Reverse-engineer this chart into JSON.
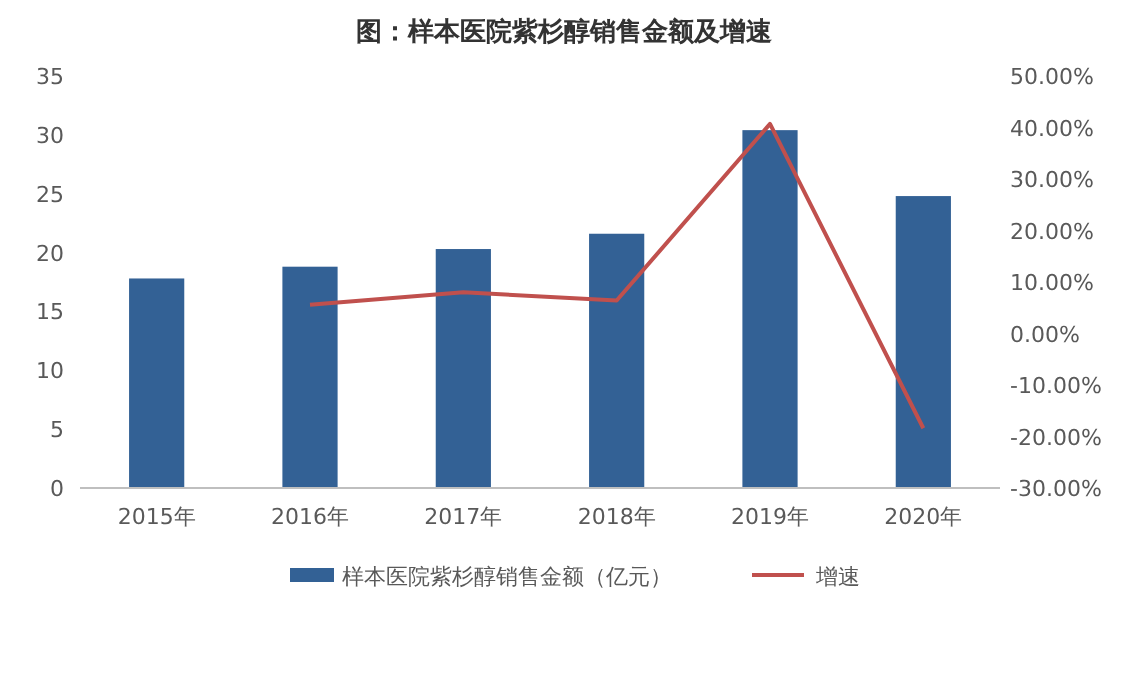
{
  "chart_data": {
    "type": "bar",
    "title": "图：样本医院紫杉醇销售金额及增速",
    "categories": [
      "2015年",
      "2016年",
      "2017年",
      "2018年",
      "2019年",
      "2020年"
    ],
    "series": [
      {
        "name": "样本医院紫杉醇销售金额（亿元）",
        "color": "#336195",
        "values": [
          17.8,
          18.8,
          20.3,
          21.6,
          30.4,
          24.8
        ]
      },
      {
        "name": "增速",
        "type": "line",
        "axis": "y2",
        "color": "#c0504d",
        "values": [
          null,
          5.6,
          8.0,
          6.4,
          40.7,
          -18.4
        ]
      }
    ],
    "ylim": [
      0,
      35
    ],
    "yticks": [
      0,
      5,
      10,
      15,
      20,
      25,
      30,
      35
    ],
    "y2lim": [
      -30,
      50
    ],
    "y2ticks": [
      {
        "value": -30,
        "label": "-30.00%"
      },
      {
        "value": -20,
        "label": "-20.00%"
      },
      {
        "value": -10,
        "label": "-10.00%"
      },
      {
        "value": 0,
        "label": "0.00%"
      },
      {
        "value": 10,
        "label": "10.00%"
      },
      {
        "value": 20,
        "label": "20.00%"
      },
      {
        "value": 30,
        "label": "30.00%"
      },
      {
        "value": 40,
        "label": "40.00%"
      },
      {
        "value": 50,
        "label": "50.00%"
      }
    ],
    "legend": "bottom"
  }
}
